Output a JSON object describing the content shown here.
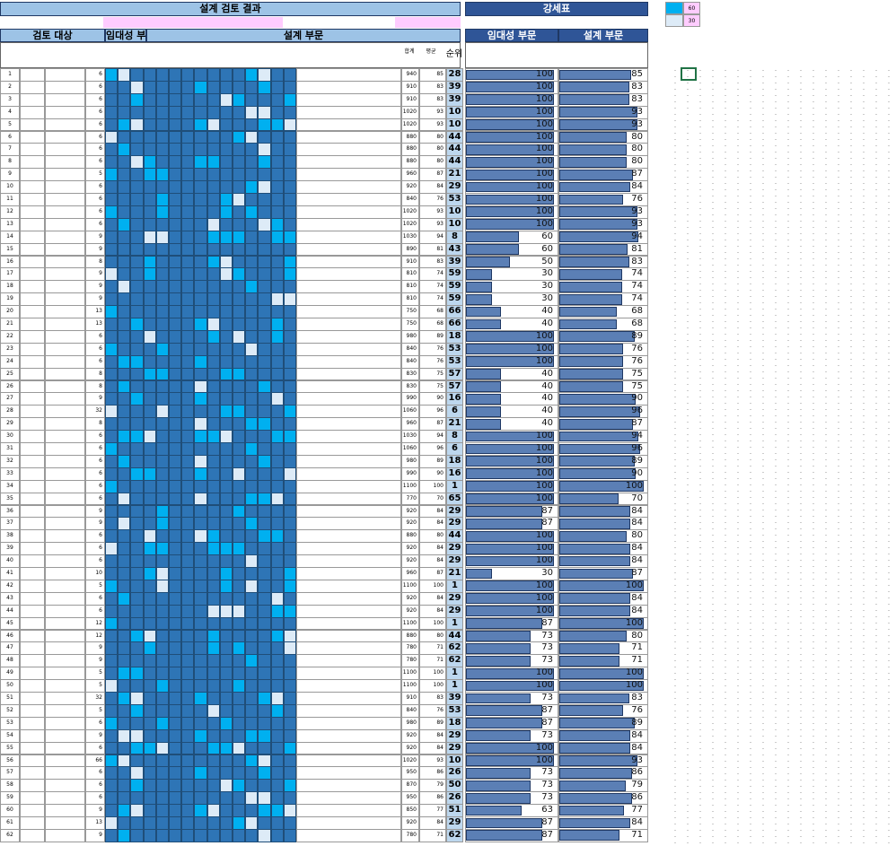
{
  "header": {
    "title": "설계 검토 결과",
    "side_title": "강세표",
    "legend_labels": [
      60,
      30
    ]
  },
  "columns": {
    "target": "검토 대상",
    "rental": "임대성 부문",
    "design": "설계 부문",
    "total": "합계",
    "avg": "평균",
    "rank": "순위",
    "side_rental": "임대성 부문",
    "side_design": "설계 부문"
  },
  "table": {
    "rows": [
      [
        1,
        6,
        940,
        85,
        28,
        100,
        85
      ],
      [
        2,
        6,
        910,
        83,
        39,
        100,
        83
      ],
      [
        3,
        6,
        910,
        83,
        39,
        100,
        83
      ],
      [
        4,
        6,
        1020,
        93,
        10,
        100,
        93
      ],
      [
        5,
        6,
        1020,
        93,
        10,
        100,
        93
      ],
      [
        6,
        6,
        880,
        80,
        44,
        100,
        80
      ],
      [
        7,
        6,
        880,
        80,
        44,
        100,
        80
      ],
      [
        8,
        6,
        880,
        80,
        44,
        100,
        80
      ],
      [
        9,
        5,
        960,
        87,
        21,
        100,
        87
      ],
      [
        10,
        6,
        920,
        84,
        29,
        100,
        84
      ],
      [
        11,
        6,
        840,
        76,
        53,
        100,
        76
      ],
      [
        12,
        6,
        1020,
        93,
        10,
        100,
        93
      ],
      [
        13,
        6,
        1020,
        93,
        10,
        100,
        93
      ],
      [
        14,
        9,
        1030,
        94,
        8,
        60,
        94
      ],
      [
        15,
        9,
        890,
        81,
        43,
        60,
        81
      ],
      [
        16,
        8,
        910,
        83,
        39,
        50,
        83
      ],
      [
        17,
        9,
        810,
        74,
        59,
        30,
        74
      ],
      [
        18,
        9,
        810,
        74,
        59,
        30,
        74
      ],
      [
        19,
        9,
        810,
        74,
        59,
        30,
        74
      ],
      [
        20,
        13,
        750,
        68,
        66,
        40,
        68
      ],
      [
        21,
        13,
        750,
        68,
        66,
        40,
        68
      ],
      [
        22,
        6,
        980,
        89,
        18,
        100,
        89
      ],
      [
        23,
        6,
        840,
        76,
        53,
        100,
        76
      ],
      [
        24,
        6,
        840,
        76,
        53,
        100,
        76
      ],
      [
        25,
        8,
        830,
        75,
        57,
        40,
        75
      ],
      [
        26,
        8,
        830,
        75,
        57,
        40,
        75
      ],
      [
        27,
        9,
        990,
        90,
        16,
        40,
        90
      ],
      [
        28,
        32,
        1060,
        96,
        6,
        40,
        96
      ],
      [
        29,
        8,
        960,
        87,
        21,
        40,
        87
      ],
      [
        30,
        6,
        1030,
        94,
        8,
        100,
        94
      ],
      [
        31,
        6,
        1060,
        96,
        6,
        100,
        96
      ],
      [
        32,
        6,
        980,
        89,
        18,
        100,
        89
      ],
      [
        33,
        6,
        990,
        90,
        16,
        100,
        90
      ],
      [
        34,
        6,
        1100,
        100,
        1,
        100,
        100
      ],
      [
        35,
        6,
        770,
        70,
        65,
        100,
        70
      ],
      [
        36,
        9,
        920,
        84,
        29,
        87,
        84
      ],
      [
        37,
        9,
        920,
        84,
        29,
        87,
        84
      ],
      [
        38,
        6,
        880,
        80,
        44,
        100,
        80
      ],
      [
        39,
        6,
        920,
        84,
        29,
        100,
        84
      ],
      [
        40,
        6,
        920,
        84,
        29,
        100,
        84
      ],
      [
        41,
        10,
        960,
        87,
        21,
        30,
        87
      ],
      [
        42,
        5,
        1100,
        100,
        1,
        100,
        100
      ],
      [
        43,
        6,
        920,
        84,
        29,
        100,
        84
      ],
      [
        44,
        6,
        920,
        84,
        29,
        100,
        84
      ],
      [
        45,
        12,
        1100,
        100,
        1,
        87,
        100
      ],
      [
        46,
        12,
        880,
        80,
        44,
        73,
        80
      ],
      [
        47,
        9,
        780,
        71,
        62,
        73,
        71
      ],
      [
        48,
        9,
        780,
        71,
        62,
        73,
        71
      ],
      [
        49,
        5,
        1100,
        100,
        1,
        100,
        100
      ],
      [
        50,
        5,
        1100,
        100,
        1,
        100,
        100
      ],
      [
        51,
        32,
        910,
        83,
        39,
        73,
        83
      ],
      [
        52,
        5,
        840,
        76,
        53,
        87,
        76
      ],
      [
        53,
        6,
        980,
        89,
        18,
        87,
        89
      ],
      [
        54,
        9,
        920,
        84,
        29,
        73,
        84
      ],
      [
        55,
        6,
        920,
        84,
        29,
        100,
        84
      ],
      [
        56,
        66,
        1020,
        93,
        10,
        100,
        93
      ],
      [
        57,
        6,
        950,
        86,
        26,
        73,
        86
      ],
      [
        58,
        6,
        870,
        79,
        50,
        73,
        79
      ],
      [
        59,
        6,
        950,
        86,
        26,
        73,
        86
      ],
      [
        60,
        9,
        850,
        77,
        51,
        63,
        77
      ],
      [
        61,
        13,
        920,
        84,
        29,
        87,
        84
      ],
      [
        62,
        9,
        780,
        71,
        62,
        87,
        71
      ]
    ]
  }
}
